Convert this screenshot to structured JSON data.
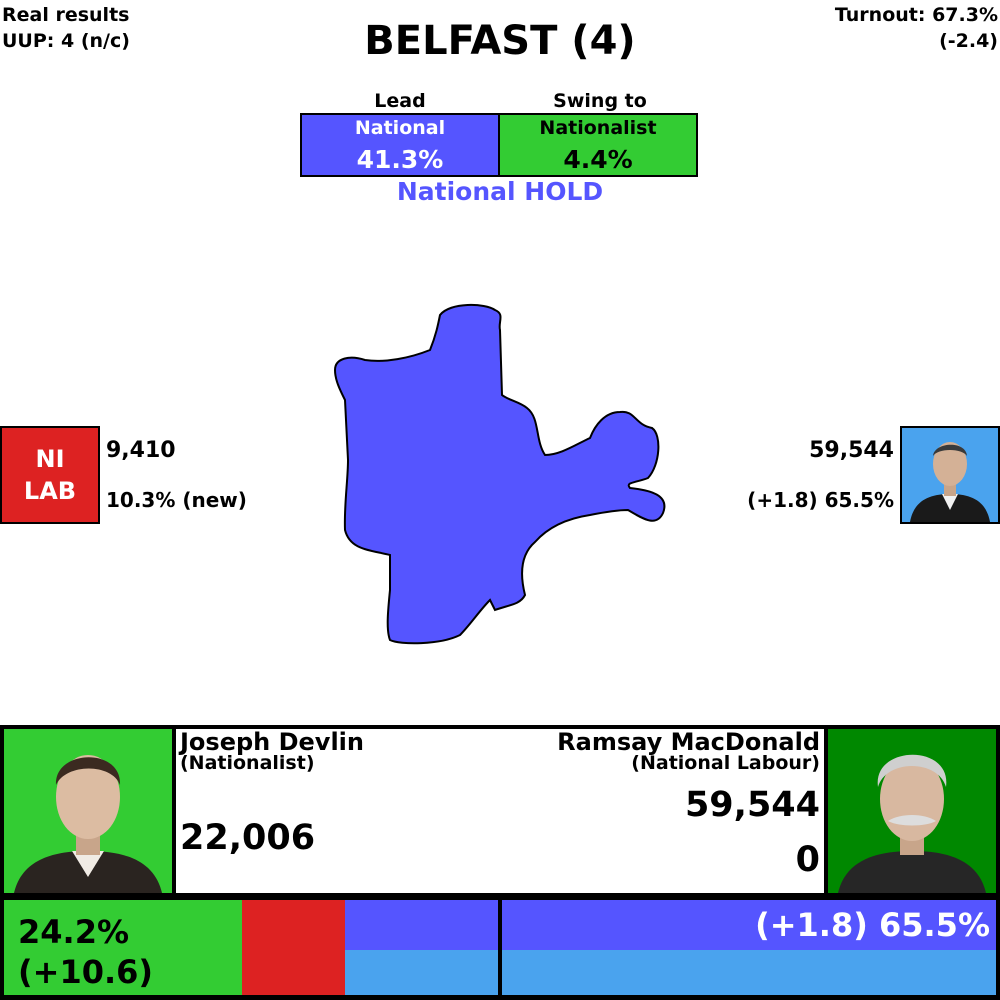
{
  "header": {
    "real_results_label": "Real results",
    "real_results_value": "UUP: 4 (n/c)",
    "turnout_label": "Turnout: 67.3%",
    "turnout_change": "(-2.4)",
    "title": "BELFAST (4)"
  },
  "lead": {
    "label": "Lead",
    "party": "National",
    "value": "41.3%",
    "color": "#5555ff"
  },
  "swing": {
    "label": "Swing to",
    "party": "Nationalist",
    "value": "4.4%",
    "color": "#33cc33"
  },
  "result": {
    "text": "National HOLD",
    "color": "#5555ff"
  },
  "map": {
    "fill_color": "#5555ff"
  },
  "left_candidate": {
    "party_line1": "NI",
    "party_line2": "LAB",
    "votes": "9,410",
    "share": "10.3% (new)",
    "color": "#dd2222"
  },
  "right_candidate": {
    "votes": "59,544",
    "share": "(+1.8) 65.5%",
    "photo": "portrait-photo"
  },
  "bottom": {
    "left": {
      "name": "Joseph Devlin",
      "party": "(Nationalist)",
      "votes": "22,006",
      "photo": "portrait-photo"
    },
    "right": {
      "name": "Ramsay MacDonald",
      "party": "(National Labour)",
      "votes": "59,544",
      "change": "0",
      "photo": "portrait-photo"
    }
  },
  "bar": {
    "left_share": "24.2%",
    "left_change": "(+10.6)",
    "right_text": "(+1.8) 65.5%",
    "segments": [
      {
        "party": "Nationalist",
        "color": "#33cc33",
        "share": 24.2
      },
      {
        "party": "NI Labour",
        "color": "#dd2222",
        "share": 10.3
      },
      {
        "party": "National",
        "color": "#5555ff",
        "share": 65.5
      }
    ]
  }
}
